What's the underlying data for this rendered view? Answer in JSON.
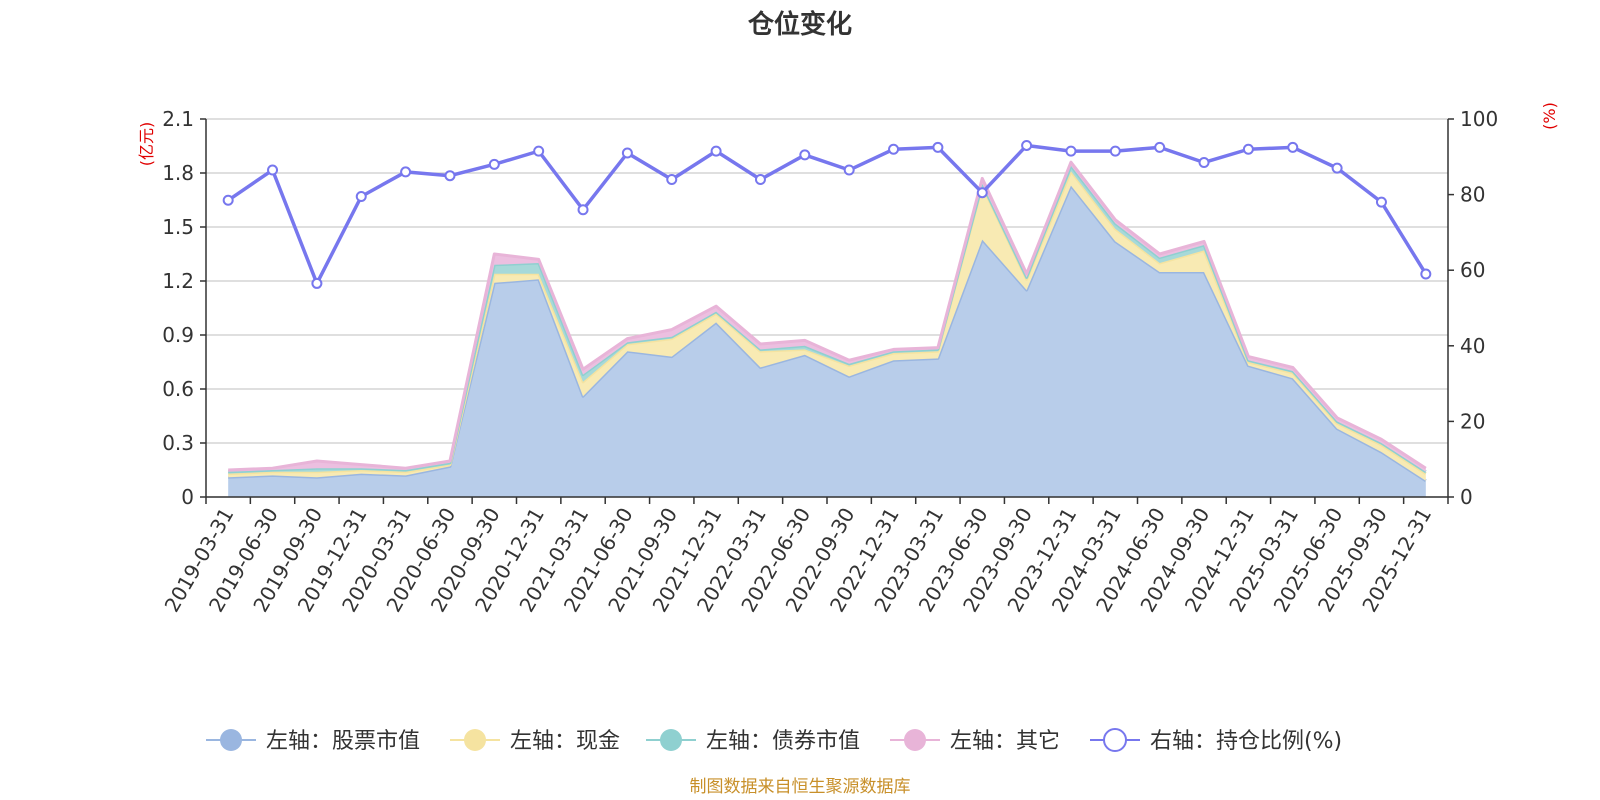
{
  "chart_data": {
    "type": "area",
    "title": "仓位变化",
    "left_axis": {
      "unit": "(亿元)",
      "ticks": [
        "0",
        "0.3",
        "0.6",
        "0.9",
        "1.2",
        "1.5",
        "1.8",
        "2.1"
      ],
      "range": [
        0,
        2.1
      ]
    },
    "right_axis": {
      "unit": "(%)",
      "ticks": [
        "0",
        "20",
        "40",
        "60",
        "80",
        "100"
      ],
      "range": [
        0,
        100
      ]
    },
    "categories": [
      "2019-03-31",
      "2019-06-30",
      "2019-09-30",
      "2019-12-31",
      "2020-03-31",
      "2020-06-30",
      "2020-09-30",
      "2020-12-31",
      "2021-03-31",
      "2021-06-30",
      "2021-09-30",
      "2021-12-31",
      "2022-03-31",
      "2022-06-30",
      "2022-09-30",
      "2022-12-31",
      "2023-03-31",
      "2023-06-30",
      "2023-09-30",
      "2023-12-31",
      "2024-03-31",
      "2024-06-30",
      "2024-09-30",
      "2024-12-31",
      "2025-03-31",
      "2025-06-30",
      "2025-09-30",
      "2025-12-31"
    ],
    "series": [
      {
        "name": "左轴：股票市值",
        "axis": "left",
        "stacked": true,
        "color": "#9ab6e0",
        "fill": "#b8cdea",
        "values": [
          0.11,
          0.12,
          0.11,
          0.13,
          0.12,
          0.17,
          1.19,
          1.21,
          0.56,
          0.81,
          0.78,
          0.97,
          0.72,
          0.79,
          0.67,
          0.76,
          0.77,
          1.43,
          1.15,
          1.73,
          1.42,
          1.25,
          1.25,
          0.73,
          0.66,
          0.38,
          0.25,
          0.09
        ]
      },
      {
        "name": "左轴：现金",
        "axis": "left",
        "stacked": true,
        "color": "#f5e3a0",
        "fill": "#f8eab3",
        "values": [
          0.02,
          0.02,
          0.03,
          0.02,
          0.02,
          0.01,
          0.05,
          0.03,
          0.08,
          0.04,
          0.1,
          0.05,
          0.09,
          0.03,
          0.06,
          0.04,
          0.04,
          0.3,
          0.06,
          0.08,
          0.07,
          0.05,
          0.12,
          0.02,
          0.03,
          0.03,
          0.04,
          0.04
        ]
      },
      {
        "name": "左轴：债券市值",
        "axis": "left",
        "stacked": true,
        "color": "#8fd0d0",
        "fill": "#a7d9d9",
        "values": [
          0.01,
          0.01,
          0.02,
          0.01,
          0.01,
          0.01,
          0.05,
          0.06,
          0.04,
          0.01,
          0.01,
          0.01,
          0.01,
          0.02,
          0.01,
          0.01,
          0.01,
          0.01,
          0.01,
          0.03,
          0.03,
          0.03,
          0.03,
          0.01,
          0.01,
          0.01,
          0.01,
          0.01
        ]
      },
      {
        "name": "左轴：其它",
        "axis": "left",
        "stacked": true,
        "color": "#e8b4d8",
        "fill": "#ecbfe0",
        "values": [
          0.01,
          0.01,
          0.04,
          0.02,
          0.01,
          0.01,
          0.06,
          0.02,
          0.03,
          0.02,
          0.04,
          0.03,
          0.03,
          0.03,
          0.02,
          0.01,
          0.01,
          0.03,
          0.02,
          0.02,
          0.02,
          0.02,
          0.02,
          0.02,
          0.02,
          0.02,
          0.02,
          0.02
        ]
      },
      {
        "name": "右轴：持仓比例(%)",
        "axis": "right",
        "type": "line",
        "color": "#7777ee",
        "values": [
          78.5,
          86.5,
          56.5,
          79.5,
          86,
          85,
          88,
          91.5,
          76,
          91,
          84,
          91.5,
          84,
          90.5,
          86.5,
          92,
          92.5,
          80.5,
          93,
          91.5,
          91.5,
          92.5,
          88.5,
          92,
          92.5,
          87,
          78,
          59
        ]
      }
    ],
    "legend_placement": "bottom",
    "grid": true
  },
  "source_note": "制图数据来自恒生聚源数据库"
}
